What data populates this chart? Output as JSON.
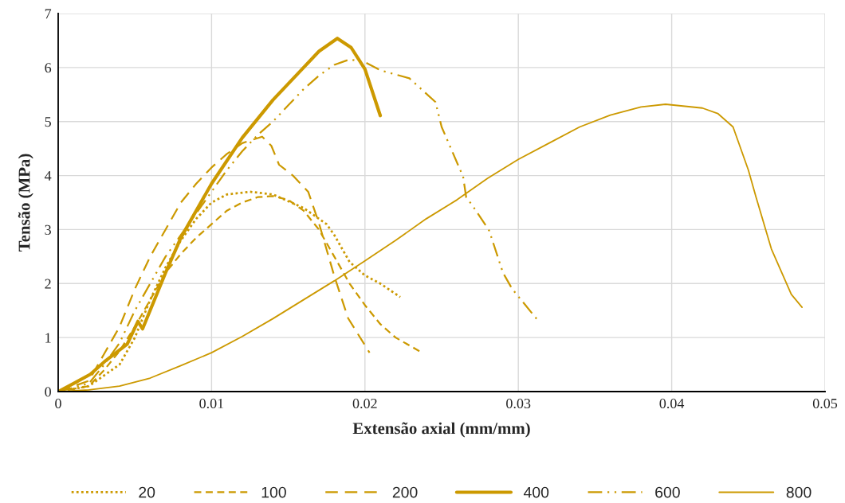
{
  "chart_data": {
    "type": "line",
    "xlabel": "Extensão axial (mm/mm)",
    "ylabel": "Tensão (MPa)",
    "xlim": [
      0,
      0.05
    ],
    "xticks": [
      0,
      0.01,
      0.02,
      0.03,
      0.04,
      0.05
    ],
    "ylim": [
      0,
      7
    ],
    "yticks": [
      0,
      1,
      2,
      3,
      4,
      5,
      6,
      7
    ],
    "grid": true,
    "legend": "bottom",
    "marker": "none",
    "series": [
      {
        "name": "20",
        "color": "#cc9900",
        "line_style": "dotted",
        "x": [
          0,
          0.002,
          0.004,
          0.005,
          0.006,
          0.007,
          0.008,
          0.009,
          0.01,
          0.011,
          0.0125,
          0.014,
          0.016,
          0.0175,
          0.018,
          0.019,
          0.02,
          0.021,
          0.0223
        ],
        "values": [
          0,
          0.1,
          0.5,
          1.0,
          1.7,
          2.3,
          2.8,
          3.2,
          3.5,
          3.65,
          3.7,
          3.65,
          3.4,
          3.1,
          2.9,
          2.4,
          2.15,
          2.0,
          1.75
        ]
      },
      {
        "name": "100",
        "color": "#cc9900",
        "line_style": "dashed",
        "x": [
          0,
          0.002,
          0.003,
          0.004,
          0.005,
          0.006,
          0.007,
          0.008,
          0.009,
          0.01,
          0.011,
          0.012,
          0.013,
          0.014,
          0.015,
          0.016,
          0.017,
          0.018,
          0.019,
          0.02,
          0.021,
          0.022,
          0.0236
        ],
        "values": [
          0,
          0.1,
          0.4,
          0.75,
          1.2,
          1.7,
          2.2,
          2.55,
          2.85,
          3.1,
          3.35,
          3.5,
          3.6,
          3.62,
          3.55,
          3.35,
          3.0,
          2.5,
          2.0,
          1.6,
          1.25,
          1.0,
          0.74
        ]
      },
      {
        "name": "200",
        "color": "#cc9900",
        "line_style": "longdash",
        "x": [
          0,
          0.002,
          0.003,
          0.004,
          0.005,
          0.006,
          0.007,
          0.008,
          0.009,
          0.01,
          0.011,
          0.012,
          0.0133,
          0.0139,
          0.0144,
          0.0153,
          0.0163,
          0.017,
          0.018,
          0.0189,
          0.0203
        ],
        "values": [
          0,
          0.2,
          0.7,
          1.2,
          1.9,
          2.5,
          3.0,
          3.5,
          3.85,
          4.15,
          4.4,
          4.6,
          4.72,
          4.55,
          4.2,
          4.0,
          3.7,
          3.12,
          2.14,
          1.36,
          0.72
        ]
      },
      {
        "name": "400",
        "color": "#cc9900",
        "line_style": "solid",
        "x": [
          0,
          0.001,
          0.0021,
          0.003,
          0.0045,
          0.0052,
          0.0055,
          0.007,
          0.008,
          0.01,
          0.012,
          0.014,
          0.016,
          0.017,
          0.0182,
          0.0191,
          0.02,
          0.021
        ],
        "values": [
          0,
          0.15,
          0.32,
          0.55,
          0.88,
          1.3,
          1.16,
          2.2,
          2.85,
          3.85,
          4.7,
          5.4,
          6.0,
          6.3,
          6.54,
          6.37,
          5.97,
          5.11
        ]
      },
      {
        "name": "600",
        "color": "#cc9900",
        "line_style": "dashdotdot",
        "x": [
          0,
          0.002,
          0.003,
          0.004,
          0.005,
          0.006,
          0.007,
          0.008,
          0.009,
          0.01,
          0.011,
          0.012,
          0.013,
          0.014,
          0.015,
          0.016,
          0.017,
          0.018,
          0.019,
          0.02,
          0.021,
          0.0229,
          0.0246,
          0.025,
          0.0264,
          0.0266,
          0.027,
          0.0281,
          0.029,
          0.0296,
          0.0313
        ],
        "values": [
          0,
          0.15,
          0.5,
          0.9,
          1.5,
          2.0,
          2.5,
          2.9,
          3.3,
          3.7,
          4.1,
          4.45,
          4.75,
          5.0,
          5.3,
          5.6,
          5.85,
          6.05,
          6.15,
          6.1,
          5.95,
          5.8,
          5.36,
          4.9,
          3.98,
          3.6,
          3.45,
          2.98,
          2.2,
          1.9,
          1.31
        ]
      },
      {
        "name": "800",
        "color": "#cc9900",
        "line_style": "solid",
        "x": [
          0,
          0.002,
          0.004,
          0.006,
          0.008,
          0.01,
          0.012,
          0.014,
          0.016,
          0.018,
          0.02,
          0.022,
          0.024,
          0.026,
          0.028,
          0.03,
          0.032,
          0.034,
          0.036,
          0.038,
          0.0396,
          0.042,
          0.043,
          0.044,
          0.045,
          0.0455,
          0.046,
          0.0465,
          0.0478,
          0.0485
        ],
        "values": [
          0,
          0.03,
          0.1,
          0.25,
          0.48,
          0.72,
          1.02,
          1.35,
          1.7,
          2.05,
          2.42,
          2.8,
          3.2,
          3.55,
          3.95,
          4.3,
          4.6,
          4.9,
          5.12,
          5.27,
          5.32,
          5.25,
          5.15,
          4.9,
          4.1,
          3.6,
          3.12,
          2.64,
          1.8,
          1.56
        ]
      }
    ]
  }
}
